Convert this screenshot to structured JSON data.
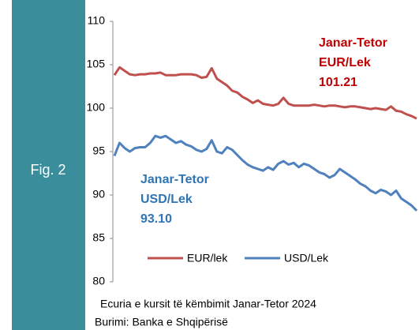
{
  "figure_label": "Fig. 2",
  "caption": "Ecuria e kursit të këmbimit Janar-Tetor 2024",
  "source": "Burimi: Banka e Shqipërisë",
  "chart_data": {
    "type": "line",
    "ylim": [
      80,
      110
    ],
    "yticks": [
      80,
      85,
      90,
      95,
      100,
      105,
      110
    ],
    "annotations": [
      {
        "lines": [
          "Janar-Tetor",
          "EUR/Lek",
          "101.21"
        ],
        "color": "#c00000"
      },
      {
        "lines": [
          "Janar-Tetor",
          "USD/Lek",
          "93.10"
        ],
        "color": "#2e75b6"
      }
    ],
    "series": [
      {
        "name": "EUR/lek",
        "color": "#c0504d",
        "values": [
          103.8,
          104.7,
          104.3,
          103.9,
          103.8,
          103.9,
          103.9,
          104.0,
          104.0,
          104.1,
          103.8,
          103.8,
          103.8,
          103.9,
          103.9,
          103.9,
          103.8,
          103.5,
          103.6,
          104.6,
          103.4,
          103.0,
          102.6,
          102.0,
          101.8,
          101.3,
          101.0,
          100.6,
          100.9,
          100.5,
          100.4,
          100.3,
          100.5,
          101.2,
          100.5,
          100.3,
          100.3,
          100.3,
          100.3,
          100.4,
          100.3,
          100.2,
          100.3,
          100.3,
          100.2,
          100.1,
          100.2,
          100.2,
          100.1,
          100.0,
          99.9,
          100.0,
          99.9,
          99.8,
          100.2,
          99.7,
          99.6,
          99.3,
          99.1,
          98.8
        ]
      },
      {
        "name": "USD/Lek",
        "color": "#4f81bd",
        "values": [
          94.5,
          96.0,
          95.4,
          95.0,
          95.4,
          95.5,
          95.5,
          96.0,
          96.8,
          96.6,
          96.8,
          96.4,
          96.0,
          96.2,
          95.8,
          95.6,
          95.2,
          95.0,
          95.3,
          96.3,
          95.0,
          94.8,
          95.5,
          95.2,
          94.6,
          94.0,
          93.5,
          93.2,
          93.0,
          92.8,
          93.2,
          92.9,
          93.6,
          93.9,
          93.5,
          93.7,
          93.2,
          93.6,
          93.4,
          93.0,
          92.6,
          92.4,
          92.0,
          92.3,
          93.0,
          92.6,
          92.2,
          91.8,
          91.3,
          91.0,
          90.5,
          90.2,
          90.6,
          90.4,
          90.0,
          90.5,
          89.6,
          89.2,
          88.8,
          88.2
        ]
      }
    ]
  }
}
